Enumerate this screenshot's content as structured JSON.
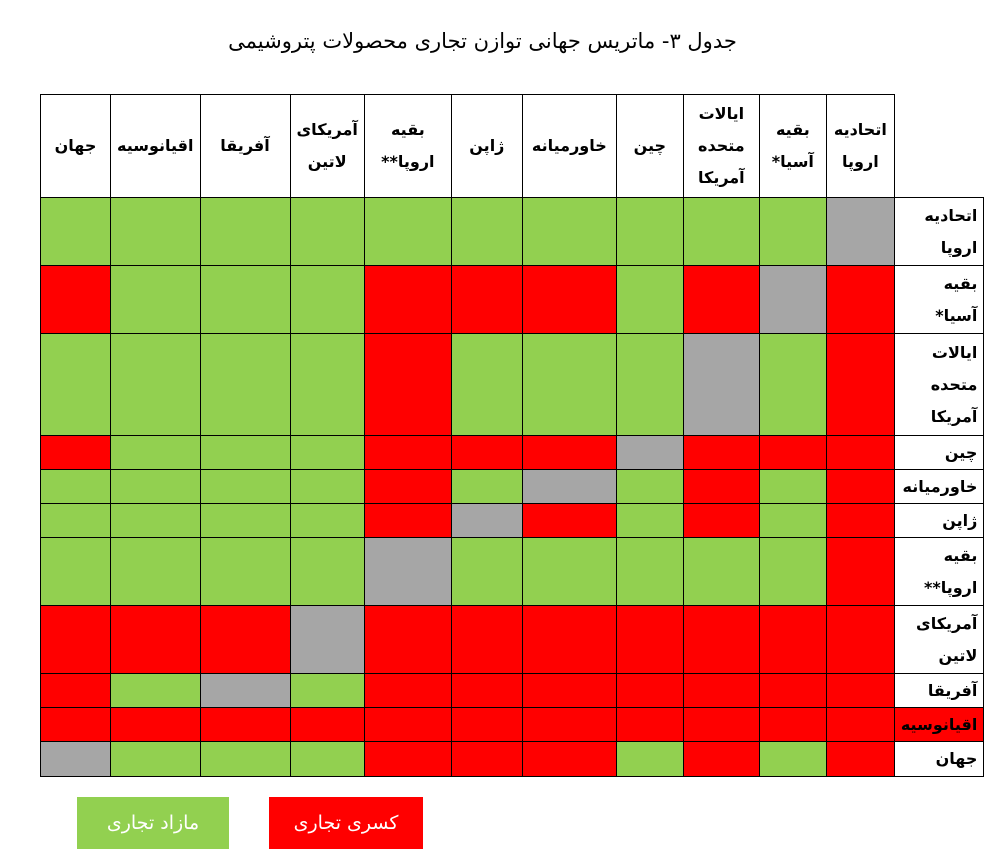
{
  "caption": "جدول ۳- ماتریس جهانی توازن تجاری محصولات پتروشیمی",
  "columns": [
    "اتحادیه\nاروپا",
    "بقیه\nآسیا*",
    "ایالات\nمتحده\nآمریکا",
    "چین",
    "خاورمیانه",
    "ژاپن",
    "بقیه\nاروپا**",
    "آمریکای\nلاتین",
    "آفریقا",
    "اقیانوسیه",
    "جهان"
  ],
  "rows": [
    {
      "label": "اتحادیه\nاروپا",
      "cells": [
        "none",
        "surplus",
        "surplus",
        "surplus",
        "surplus",
        "surplus",
        "surplus",
        "surplus",
        "surplus",
        "surplus",
        "surplus"
      ]
    },
    {
      "label": "بقیه\nآسیا*",
      "cells": [
        "deficit",
        "none",
        "deficit",
        "surplus",
        "deficit",
        "deficit",
        "deficit",
        "surplus",
        "surplus",
        "surplus",
        "deficit"
      ]
    },
    {
      "label": "ایالات\nمتحده\nآمریکا",
      "cells": [
        "deficit",
        "surplus",
        "none",
        "surplus",
        "surplus",
        "surplus",
        "deficit",
        "surplus",
        "surplus",
        "surplus",
        "surplus"
      ]
    },
    {
      "label": "چین",
      "cells": [
        "deficit",
        "deficit",
        "deficit",
        "none",
        "deficit",
        "deficit",
        "deficit",
        "surplus",
        "surplus",
        "surplus",
        "deficit"
      ]
    },
    {
      "label": "خاورمیانه",
      "cells": [
        "deficit",
        "surplus",
        "deficit",
        "surplus",
        "none",
        "surplus",
        "deficit",
        "surplus",
        "surplus",
        "surplus",
        "surplus"
      ]
    },
    {
      "label": "ژاپن",
      "cells": [
        "deficit",
        "surplus",
        "deficit",
        "surplus",
        "deficit",
        "none",
        "deficit",
        "surplus",
        "surplus",
        "surplus",
        "surplus"
      ]
    },
    {
      "label": "بقیه\nاروپا**",
      "cells": [
        "deficit",
        "surplus",
        "surplus",
        "surplus",
        "surplus",
        "surplus",
        "none",
        "surplus",
        "surplus",
        "surplus",
        "surplus"
      ]
    },
    {
      "label": "آمریکای\nلاتین",
      "cells": [
        "deficit",
        "deficit",
        "deficit",
        "deficit",
        "deficit",
        "deficit",
        "deficit",
        "none",
        "deficit",
        "deficit",
        "deficit"
      ]
    },
    {
      "label": "آفریقا",
      "cells": [
        "deficit",
        "deficit",
        "deficit",
        "deficit",
        "deficit",
        "deficit",
        "deficit",
        "surplus",
        "none",
        "surplus",
        "deficit"
      ]
    },
    {
      "label": "اقیانوسیه",
      "highlight": true,
      "cells": [
        "deficit",
        "deficit",
        "deficit",
        "deficit",
        "deficit",
        "deficit",
        "deficit",
        "deficit",
        "deficit",
        "deficit",
        "deficit"
      ]
    },
    {
      "label": "جهان",
      "cells": [
        "deficit",
        "surplus",
        "deficit",
        "surplus",
        "deficit",
        "deficit",
        "deficit",
        "surplus",
        "surplus",
        "surplus",
        "none"
      ]
    }
  ],
  "legend": {
    "surplus_label": "مازاد تجاری",
    "deficit_label": "کسری تجاری",
    "surplus_color": "#92d050",
    "deficit_color": "#ff0000",
    "none_color": "#a6a6a6"
  }
}
